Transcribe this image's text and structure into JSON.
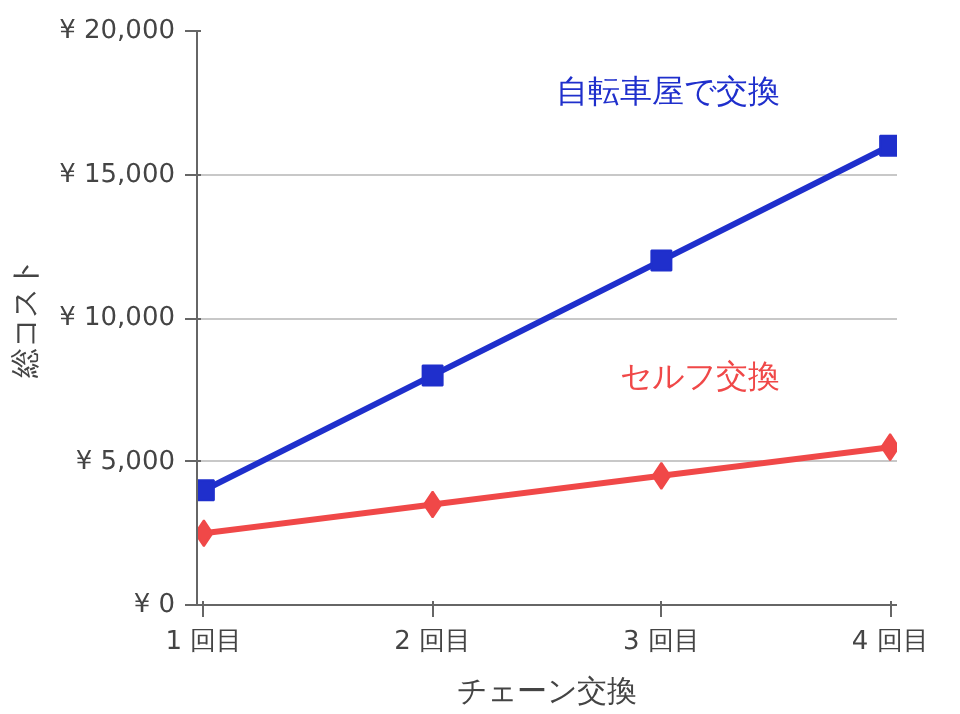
{
  "chart_data": {
    "type": "line",
    "xlabel": "チェーン交換",
    "ylabel": "総コスト",
    "categories": [
      "1 回目",
      "2 回目",
      "3 回目",
      "4 回目"
    ],
    "series": [
      {
        "name": "自転車屋で交換",
        "color": "#1f2fcc",
        "marker": "square",
        "values": [
          4000,
          8000,
          12000,
          16000
        ]
      },
      {
        "name": "セルフ交換",
        "color": "#f04848",
        "marker": "diamond",
        "values": [
          2500,
          3500,
          4500,
          5500
        ]
      }
    ],
    "ylim": [
      0,
      20000
    ],
    "yticks": [
      {
        "value": 0,
        "label": "¥ 0"
      },
      {
        "value": 5000,
        "label": "¥ 5,000"
      },
      {
        "value": 10000,
        "label": "¥ 10,000"
      },
      {
        "value": 15000,
        "label": "¥ 15,000"
      },
      {
        "value": 20000,
        "label": "¥ 20,000"
      }
    ],
    "grid": "y",
    "line_style": "solid"
  }
}
